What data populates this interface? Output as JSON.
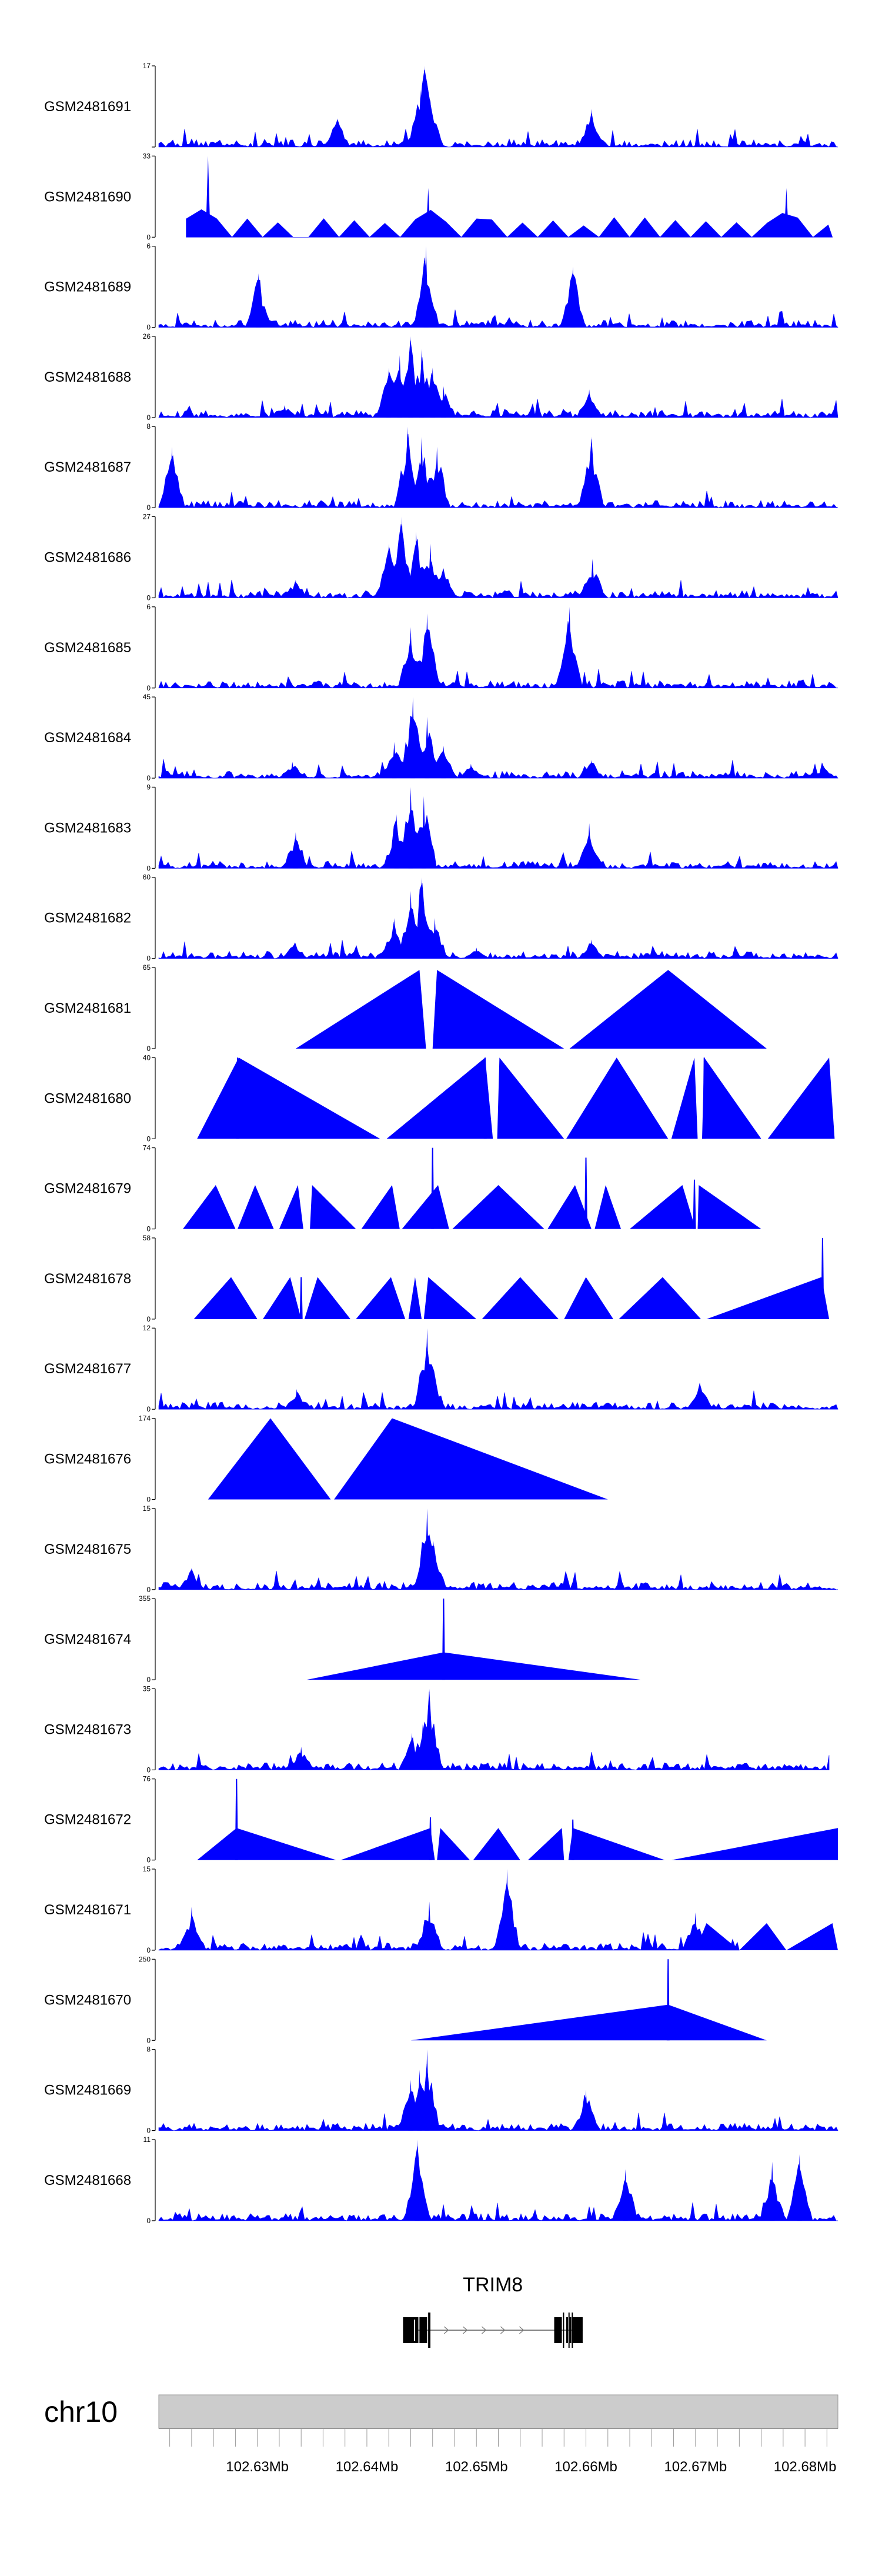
{
  "chart_data": {
    "type": "area",
    "title": "",
    "xlabel": "",
    "ylabel": "",
    "fill_color": "#0000ff",
    "track_bg_color": "#ffffff",
    "ideogram_color": "#cccccc",
    "gene_color": "#000000",
    "xlim": [
      102.621,
      102.683
    ],
    "x_unit": "Mb",
    "tracks": [
      {
        "name": "GSM2481691",
        "ymax": 17,
        "ymin": 0,
        "ylim_labels": [
          "17",
          ""
        ],
        "pattern": "dense",
        "peaks": [
          {
            "x": 102.6453,
            "y": 17
          },
          {
            "x": 102.6449,
            "y": 12
          },
          {
            "x": 102.6458,
            "y": 10
          },
          {
            "x": 102.6605,
            "y": 8
          },
          {
            "x": 102.6373,
            "y": 6
          }
        ]
      },
      {
        "name": "GSM2481690",
        "ymax": 33,
        "ymin": 0,
        "ylim_labels": [
          "33",
          "0"
        ],
        "pattern": "sparse",
        "start": 102.6235,
        "end": 102.6825,
        "peaks": [
          {
            "x": 102.6255,
            "y": 33
          },
          {
            "x": 102.6456,
            "y": 20
          },
          {
            "x": 102.6783,
            "y": 20
          }
        ]
      },
      {
        "name": "GSM2481689",
        "ymax": 6,
        "ymin": 0,
        "ylim_labels": [
          "6",
          "0"
        ],
        "pattern": "dense",
        "peaks": [
          {
            "x": 102.6454,
            "y": 6
          },
          {
            "x": 102.6588,
            "y": 4.5
          },
          {
            "x": 102.6301,
            "y": 4
          }
        ]
      },
      {
        "name": "GSM2481688",
        "ymax": 26,
        "ymin": 0,
        "ylim_labels": [
          "26",
          "0"
        ],
        "pattern": "dense",
        "peaks": [
          {
            "x": 102.642,
            "y": 16
          },
          {
            "x": 102.643,
            "y": 20
          },
          {
            "x": 102.644,
            "y": 26
          },
          {
            "x": 102.645,
            "y": 22
          },
          {
            "x": 102.646,
            "y": 16
          },
          {
            "x": 102.647,
            "y": 10
          },
          {
            "x": 102.6603,
            "y": 9
          },
          {
            "x": 102.6325,
            "y": 4
          }
        ]
      },
      {
        "name": "GSM2481687",
        "ymax": 8,
        "ymin": 0,
        "ylim_labels": [
          "8",
          "0"
        ],
        "pattern": "dense",
        "peaks": [
          {
            "x": 102.6437,
            "y": 8
          },
          {
            "x": 102.645,
            "y": 7
          },
          {
            "x": 102.6464,
            "y": 6
          },
          {
            "x": 102.6605,
            "y": 7
          },
          {
            "x": 102.6222,
            "y": 6
          }
        ]
      },
      {
        "name": "GSM2481686",
        "ymax": 27,
        "ymin": 0,
        "ylim_labels": [
          "27",
          "0"
        ],
        "pattern": "dense",
        "peaks": [
          {
            "x": 102.642,
            "y": 18
          },
          {
            "x": 102.6432,
            "y": 27
          },
          {
            "x": 102.6445,
            "y": 22
          },
          {
            "x": 102.6458,
            "y": 18
          },
          {
            "x": 102.647,
            "y": 10
          },
          {
            "x": 102.6606,
            "y": 13
          },
          {
            "x": 102.6335,
            "y": 6
          }
        ]
      },
      {
        "name": "GSM2481685",
        "ymax": 6,
        "ymin": 0,
        "ylim_labels": [
          "6",
          "0"
        ],
        "pattern": "dense",
        "peaks": [
          {
            "x": 102.6585,
            "y": 6
          },
          {
            "x": 102.6455,
            "y": 5.5
          },
          {
            "x": 102.644,
            "y": 4.5
          }
        ]
      },
      {
        "name": "GSM2481684",
        "ymax": 45,
        "ymin": 0,
        "ylim_labels": [
          "45",
          "0"
        ],
        "pattern": "dense",
        "peaks": [
          {
            "x": 102.6425,
            "y": 20
          },
          {
            "x": 102.6442,
            "y": 45
          },
          {
            "x": 102.6455,
            "y": 34
          },
          {
            "x": 102.647,
            "y": 18
          },
          {
            "x": 102.6495,
            "y": 8
          },
          {
            "x": 102.6332,
            "y": 9
          },
          {
            "x": 102.6605,
            "y": 10
          },
          {
            "x": 102.6818,
            "y": 6
          }
        ]
      },
      {
        "name": "GSM2481683",
        "ymax": 9,
        "ymin": 0,
        "ylim_labels": [
          "9",
          "0"
        ],
        "pattern": "dense",
        "peaks": [
          {
            "x": 102.644,
            "y": 9
          },
          {
            "x": 102.6452,
            "y": 8
          },
          {
            "x": 102.6427,
            "y": 6
          },
          {
            "x": 102.6603,
            "y": 5
          },
          {
            "x": 102.6335,
            "y": 4
          }
        ]
      },
      {
        "name": "GSM2481682",
        "ymax": 60,
        "ymin": 0,
        "ylim_labels": [
          "60",
          "0"
        ],
        "pattern": "dense",
        "peaks": [
          {
            "x": 102.6425,
            "y": 30
          },
          {
            "x": 102.644,
            "y": 50
          },
          {
            "x": 102.645,
            "y": 60
          },
          {
            "x": 102.6462,
            "y": 30
          },
          {
            "x": 102.6334,
            "y": 12
          },
          {
            "x": 102.6605,
            "y": 14
          },
          {
            "x": 102.65,
            "y": 8
          }
        ]
      },
      {
        "name": "GSM2481681",
        "ymax": 65,
        "ymin": 0,
        "ylim_labels": [
          "65",
          "0"
        ],
        "pattern": "triangles",
        "triangles": [
          [
            102.6335,
            102.6448,
            102.6454,
            63
          ],
          [
            102.646,
            102.6464,
            102.658,
            63
          ],
          [
            102.6585,
            102.6675,
            102.6765,
            63
          ]
        ],
        "spikes": []
      },
      {
        "name": "GSM2481680",
        "ymax": 40,
        "ymin": 0,
        "ylim_labels": [
          "40",
          "0"
        ],
        "pattern": "triangles",
        "triangles": [
          [
            102.6245,
            102.6283,
            102.6412,
            40
          ],
          [
            102.6418,
            102.6508,
            102.6515,
            40
          ],
          [
            102.6519,
            102.6521,
            102.658,
            40
          ],
          [
            102.6582,
            102.6628,
            102.6675,
            40
          ],
          [
            102.6678,
            102.6699,
            102.6702,
            40
          ],
          [
            102.6706,
            102.6708,
            102.676,
            40
          ],
          [
            102.6766,
            102.6822,
            102.6827,
            40
          ]
        ],
        "spikes": [
          {
            "x": 102.6282,
            "y": 40
          },
          {
            "x": 102.6508,
            "y": 40
          },
          {
            "x": 102.6708,
            "y": 40
          }
        ]
      },
      {
        "name": "GSM2481679",
        "ymax": 74,
        "ymin": 0,
        "ylim_labels": [
          "74",
          "0"
        ],
        "pattern": "triangles",
        "triangles": [
          [
            102.6232,
            102.6262,
            102.628,
            40
          ],
          [
            102.6282,
            102.6298,
            102.6315,
            40
          ],
          [
            102.632,
            102.6337,
            102.6342,
            40
          ],
          [
            102.6348,
            102.635,
            102.639,
            40
          ],
          [
            102.6395,
            102.6423,
            102.643,
            40
          ],
          [
            102.6432,
            102.6465,
            102.6475,
            40
          ],
          [
            102.6478,
            102.652,
            102.6562,
            40
          ],
          [
            102.6565,
            102.659,
            102.6605,
            40
          ],
          [
            102.6608,
            102.6618,
            102.6632,
            40
          ],
          [
            102.664,
            102.6688,
            102.67,
            40
          ],
          [
            102.6702,
            102.6703,
            102.676,
            40
          ]
        ],
        "spikes": [
          {
            "x": 102.646,
            "y": 74
          },
          {
            "x": 102.66,
            "y": 65
          },
          {
            "x": 102.6699,
            "y": 45
          }
        ]
      },
      {
        "name": "GSM2481678",
        "ymax": 58,
        "ymin": 0,
        "ylim_labels": [
          "58",
          "0"
        ],
        "pattern": "triangles",
        "triangles": [
          [
            102.6242,
            102.6276,
            102.63,
            30
          ],
          [
            102.6305,
            102.633,
            102.634,
            30
          ],
          [
            102.6343,
            102.6355,
            102.6385,
            30
          ],
          [
            102.639,
            102.6422,
            102.6435,
            30
          ],
          [
            102.6438,
            102.6444,
            102.645,
            30
          ],
          [
            102.6452,
            102.6456,
            102.65,
            30
          ],
          [
            102.6505,
            102.654,
            102.6575,
            30
          ],
          [
            102.658,
            102.66,
            102.6625,
            30
          ],
          [
            102.663,
            102.667,
            102.6705,
            30
          ],
          [
            102.671,
            102.6815,
            102.6822,
            30
          ]
        ],
        "spikes": [
          {
            "x": 102.6816,
            "y": 58
          },
          {
            "x": 102.634,
            "y": 30
          }
        ]
      },
      {
        "name": "GSM2481677",
        "ymax": 12,
        "ymin": 0,
        "ylim_labels": [
          "12",
          "0"
        ],
        "pattern": "dense",
        "peaks": [
          {
            "x": 102.6455,
            "y": 12
          },
          {
            "x": 102.646,
            "y": 6
          },
          {
            "x": 102.6704,
            "y": 4
          },
          {
            "x": 102.6336,
            "y": 3
          }
        ]
      },
      {
        "name": "GSM2481676",
        "ymax": 174,
        "ymin": 0,
        "ylim_labels": [
          "174",
          "0"
        ],
        "pattern": "triangles",
        "triangles": [
          [
            102.6255,
            102.6312,
            102.6367,
            174
          ],
          [
            102.637,
            102.6423,
            102.662,
            174
          ]
        ],
        "spikes": []
      },
      {
        "name": "GSM2481675",
        "ymax": 15,
        "ymin": 0,
        "ylim_labels": [
          "15",
          "0"
        ],
        "pattern": "dense",
        "peaks": [
          {
            "x": 102.6455,
            "y": 15
          },
          {
            "x": 102.6461,
            "y": 9
          },
          {
            "x": 102.624,
            "y": 4
          }
        ]
      },
      {
        "name": "GSM2481674",
        "ymax": 355,
        "ymin": 0,
        "ylim_labels": [
          "355",
          "0"
        ],
        "pattern": "triangles",
        "triangles": [
          [
            102.6345,
            102.647,
            102.665,
            120
          ]
        ],
        "spikes": [
          {
            "x": 102.647,
            "y": 355
          }
        ]
      },
      {
        "name": "GSM2481673",
        "ymax": 35,
        "ymin": 0,
        "ylim_labels": [
          "35",
          "0"
        ],
        "pattern": "dense",
        "end": 102.6822,
        "peaks": [
          {
            "x": 102.6457,
            "y": 35
          },
          {
            "x": 102.6451,
            "y": 20
          },
          {
            "x": 102.6441,
            "y": 16
          },
          {
            "x": 102.634,
            "y": 10
          }
        ]
      },
      {
        "name": "GSM2481672",
        "ymax": 76,
        "ymin": 0,
        "ylim_labels": [
          "76",
          "0"
        ],
        "pattern": "triangles",
        "triangles": [
          [
            102.6245,
            102.6281,
            102.6372,
            30
          ],
          [
            102.6376,
            102.6458,
            102.6462,
            30
          ],
          [
            102.6464,
            102.6467,
            102.6494,
            30
          ],
          [
            102.6497,
            102.652,
            102.654,
            30
          ],
          [
            102.6547,
            102.6578,
            102.658,
            30
          ],
          [
            102.6584,
            102.6588,
            102.6672,
            30
          ],
          [
            102.6678,
            102.683,
            102.683,
            30
          ]
        ],
        "spikes": [
          {
            "x": 102.6281,
            "y": 76
          },
          {
            "x": 102.6458,
            "y": 40
          },
          {
            "x": 102.6588,
            "y": 38
          }
        ]
      },
      {
        "name": "GSM2481671",
        "ymax": 15,
        "ymin": 0,
        "ylim_labels": [
          "15",
          "0"
        ],
        "pattern": "dense",
        "end": 102.674,
        "tailTriangles": [
          [
            102.674,
            102.6765,
            102.6783,
            5
          ],
          [
            102.6783,
            102.6825,
            102.683,
            5
          ],
          [
            102.67,
            102.671,
            102.674,
            5
          ]
        ],
        "peaks": [
          {
            "x": 102.6528,
            "y": 15
          },
          {
            "x": 102.6457,
            "y": 9
          },
          {
            "x": 102.624,
            "y": 8
          },
          {
            "x": 102.67,
            "y": 7
          }
        ]
      },
      {
        "name": "GSM2481670",
        "ymax": 250,
        "ymin": 0,
        "ylim_labels": [
          "250",
          "0"
        ],
        "pattern": "triangles",
        "triangles": [
          [
            102.644,
            102.6675,
            102.6765,
            110
          ]
        ],
        "spikes": [
          {
            "x": 102.6675,
            "y": 250
          }
        ]
      },
      {
        "name": "GSM2481669",
        "ymax": 8,
        "ymin": 0,
        "ylim_labels": [
          "8",
          "0"
        ],
        "pattern": "dense",
        "peaks": [
          {
            "x": 102.6455,
            "y": 8
          },
          {
            "x": 102.6448,
            "y": 6
          },
          {
            "x": 102.644,
            "y": 5
          },
          {
            "x": 102.66,
            "y": 4
          }
        ]
      },
      {
        "name": "GSM2481668",
        "ymax": 11,
        "ymin": 0,
        "ylim_labels": [
          "11",
          "0"
        ],
        "pattern": "dense",
        "peaks": [
          {
            "x": 102.6446,
            "y": 11
          },
          {
            "x": 102.6795,
            "y": 9
          },
          {
            "x": 102.677,
            "y": 8
          },
          {
            "x": 102.6636,
            "y": 7
          }
        ]
      }
    ],
    "gene": {
      "name": "TRIM8",
      "chrom": "chr10",
      "start": 102.6433,
      "end": 102.6597,
      "exons": [
        [
          102.6433,
          102.6447
        ],
        [
          102.6448,
          102.6455
        ],
        [
          102.6571,
          102.6578
        ],
        [
          102.6582,
          102.6583
        ],
        [
          102.6585,
          102.6586
        ],
        [
          102.6588,
          102.6597
        ]
      ],
      "thin_exons": [
        [
          102.6456,
          102.6458
        ],
        [
          102.6456,
          102.6457
        ],
        [
          102.6579,
          102.658
        ],
        [
          102.6584,
          102.6585
        ],
        [
          102.6587,
          102.6588
        ]
      ]
    },
    "axis": {
      "chrom_label": "chr10",
      "ticks": [
        102.622,
        102.624,
        102.626,
        102.628,
        102.63,
        102.632,
        102.634,
        102.636,
        102.638,
        102.64,
        102.642,
        102.644,
        102.646,
        102.648,
        102.65,
        102.652,
        102.654,
        102.656,
        102.658,
        102.66,
        102.662,
        102.664,
        102.666,
        102.668,
        102.67,
        102.672,
        102.674,
        102.676,
        102.678,
        102.68,
        102.682
      ],
      "labeled_ticks": [
        {
          "value": 102.63,
          "label": "102.63Mb"
        },
        {
          "value": 102.64,
          "label": "102.64Mb"
        },
        {
          "value": 102.65,
          "label": "102.65Mb"
        },
        {
          "value": 102.66,
          "label": "102.66Mb"
        },
        {
          "value": 102.67,
          "label": "102.67Mb"
        },
        {
          "value": 102.68,
          "label": "102.68Mb"
        }
      ]
    }
  }
}
